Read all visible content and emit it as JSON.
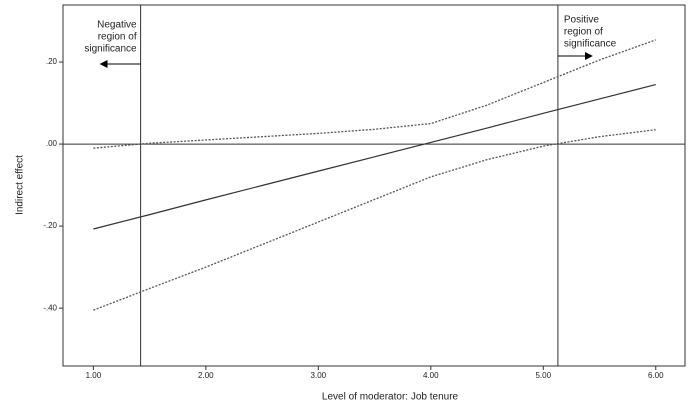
{
  "chart_data": {
    "type": "line",
    "xlabel": "Level of moderator: Job tenure",
    "ylabel": "Indirect effect",
    "x": [
      1,
      1.5,
      2,
      2.5,
      3,
      3.5,
      4,
      4.5,
      5,
      5.5,
      6
    ],
    "series": [
      {
        "color": "#333333",
        "style": "solid",
        "values": [
          -0.207,
          -0.172,
          -0.136,
          -0.101,
          -0.066,
          -0.031,
          0.004,
          0.039,
          0.075,
          0.11,
          0.145
        ]
      },
      {
        "color": "#555555",
        "style": "dotted",
        "values": [
          -0.01,
          0.002,
          0.01,
          0.018,
          0.026,
          0.036,
          0.05,
          0.095,
          0.15,
          0.205,
          0.254
        ]
      },
      {
        "color": "#555555",
        "style": "dotted",
        "values": [
          -0.405,
          -0.352,
          -0.3,
          -0.245,
          -0.19,
          -0.135,
          -0.08,
          -0.038,
          -0.005,
          0.018,
          0.035
        ]
      }
    ],
    "xlim": [
      0.73,
      6.26
    ],
    "ylim": [
      -0.541,
      0.339
    ],
    "xticks": [
      {
        "value": 1,
        "label": "1.00"
      },
      {
        "value": 2,
        "label": "2.00"
      },
      {
        "value": 3,
        "label": "3.00"
      },
      {
        "value": 4,
        "label": "4.00"
      },
      {
        "value": 5,
        "label": "5.00"
      },
      {
        "value": 6,
        "label": "6.00"
      }
    ],
    "yticks": [
      {
        "value": 0.2,
        "label": ".20"
      },
      {
        "value": 0,
        "label": ".00"
      },
      {
        "value": -0.2,
        "label": "-.20"
      },
      {
        "value": -0.4,
        "label": "-.40"
      }
    ],
    "reference_y": 0,
    "reference_x": [
      1.42,
      5.13
    ],
    "annotations": [
      {
        "lines": [
          "Negative",
          "region of",
          "significance"
        ],
        "direction": "left"
      },
      {
        "lines": [
          "Positive",
          "region of",
          "significance"
        ],
        "direction": "right"
      }
    ]
  }
}
